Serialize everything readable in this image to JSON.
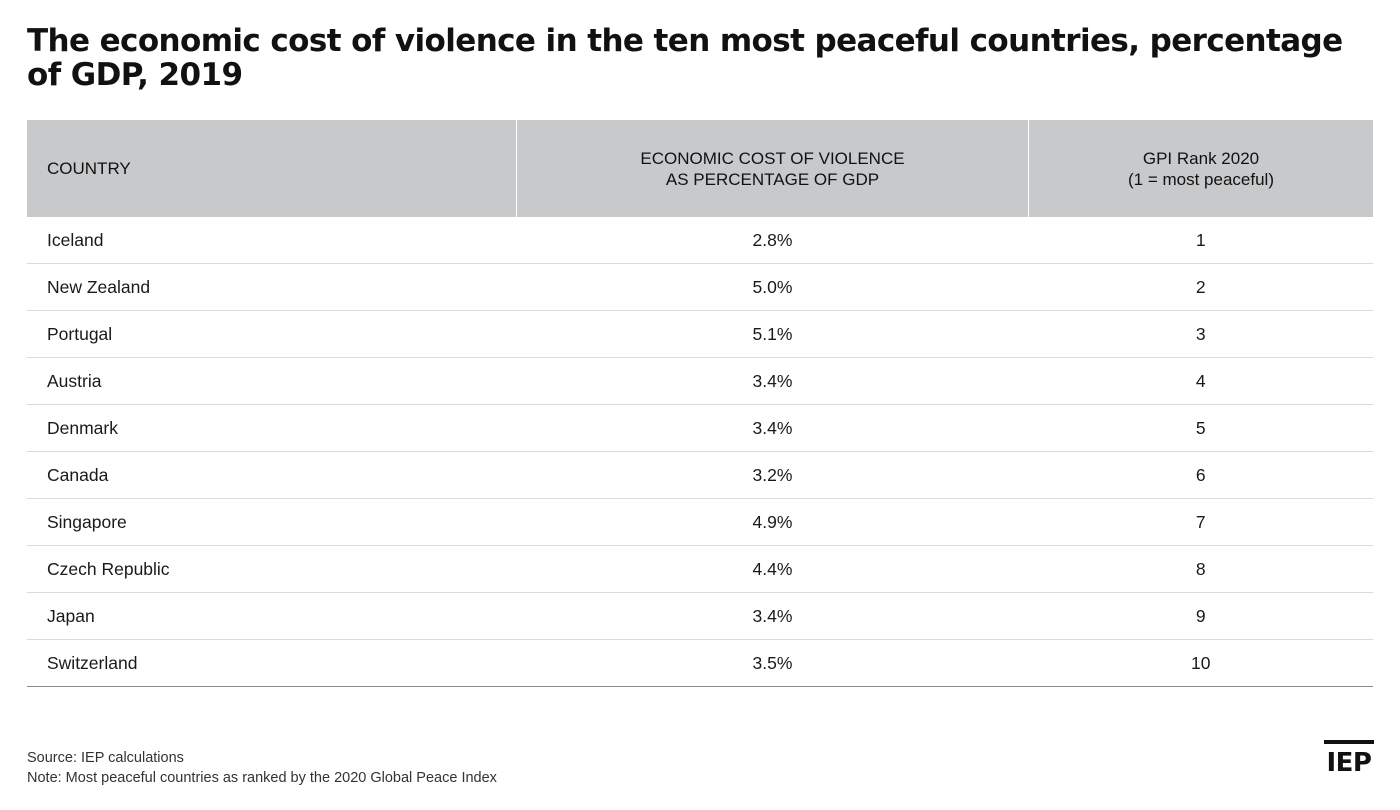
{
  "title": "The economic cost of violence in the ten most peaceful countries, percentage of GDP, 2019",
  "table": {
    "headers": {
      "country": "COUNTRY",
      "cost_line1": "ECONOMIC COST OF VIOLENCE",
      "cost_line2": "AS PERCENTAGE OF GDP",
      "rank_line1": "GPI Rank 2020",
      "rank_line2": "(1 = most peaceful)"
    },
    "rows": [
      {
        "country": "Iceland",
        "cost": "2.8%",
        "rank": "1"
      },
      {
        "country": "New Zealand",
        "cost": "5.0%",
        "rank": "2"
      },
      {
        "country": "Portugal",
        "cost": "5.1%",
        "rank": "3"
      },
      {
        "country": "Austria",
        "cost": "3.4%",
        "rank": "4"
      },
      {
        "country": "Denmark",
        "cost": "3.4%",
        "rank": "5"
      },
      {
        "country": "Canada",
        "cost": "3.2%",
        "rank": "6"
      },
      {
        "country": "Singapore",
        "cost": "4.9%",
        "rank": "7"
      },
      {
        "country": "Czech Republic",
        "cost": "4.4%",
        "rank": "8"
      },
      {
        "country": "Japan",
        "cost": "3.4%",
        "rank": "9"
      },
      {
        "country": "Switzerland",
        "cost": "3.5%",
        "rank": "10"
      }
    ]
  },
  "chart_data": {
    "type": "table",
    "title": "The economic cost of violence in the ten most peaceful countries, percentage of GDP, 2019",
    "columns": [
      "COUNTRY",
      "ECONOMIC COST OF VIOLENCE AS PERCENTAGE OF GDP",
      "GPI Rank 2020 (1 = most peaceful)"
    ],
    "categories": [
      "Iceland",
      "New Zealand",
      "Portugal",
      "Austria",
      "Denmark",
      "Canada",
      "Singapore",
      "Czech Republic",
      "Japan",
      "Switzerland"
    ],
    "series": [
      {
        "name": "ECONOMIC COST OF VIOLENCE AS PERCENTAGE OF GDP",
        "values": [
          2.8,
          5.0,
          5.1,
          3.4,
          3.4,
          3.2,
          4.9,
          4.4,
          3.4,
          3.5
        ]
      },
      {
        "name": "GPI Rank 2020",
        "values": [
          1,
          2,
          3,
          4,
          5,
          6,
          7,
          8,
          9,
          10
        ]
      }
    ]
  },
  "footer": {
    "source": "Source: IEP calculations",
    "note": "Note: Most peaceful countries as ranked by the 2020 Global Peace Index"
  },
  "logo": {
    "text": "IEP"
  },
  "colors": {
    "header_bg": "#c8c9cb",
    "text": "#1a1a1a",
    "row_divider": "#dcdcdc"
  }
}
